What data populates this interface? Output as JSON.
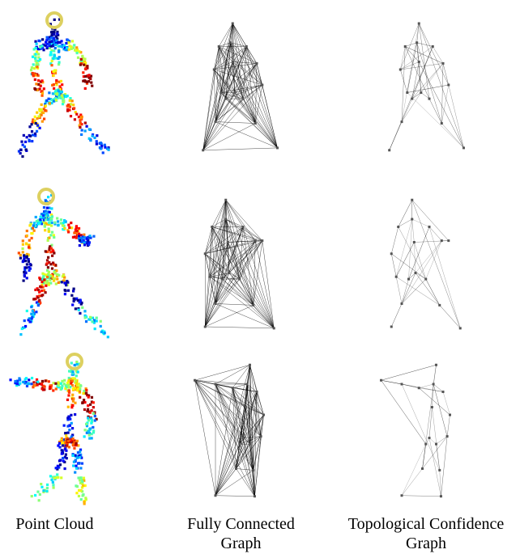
{
  "captions": [
    "Point Cloud",
    "Fully Connected Graph",
    "Topological Confidence Graph"
  ]
}
